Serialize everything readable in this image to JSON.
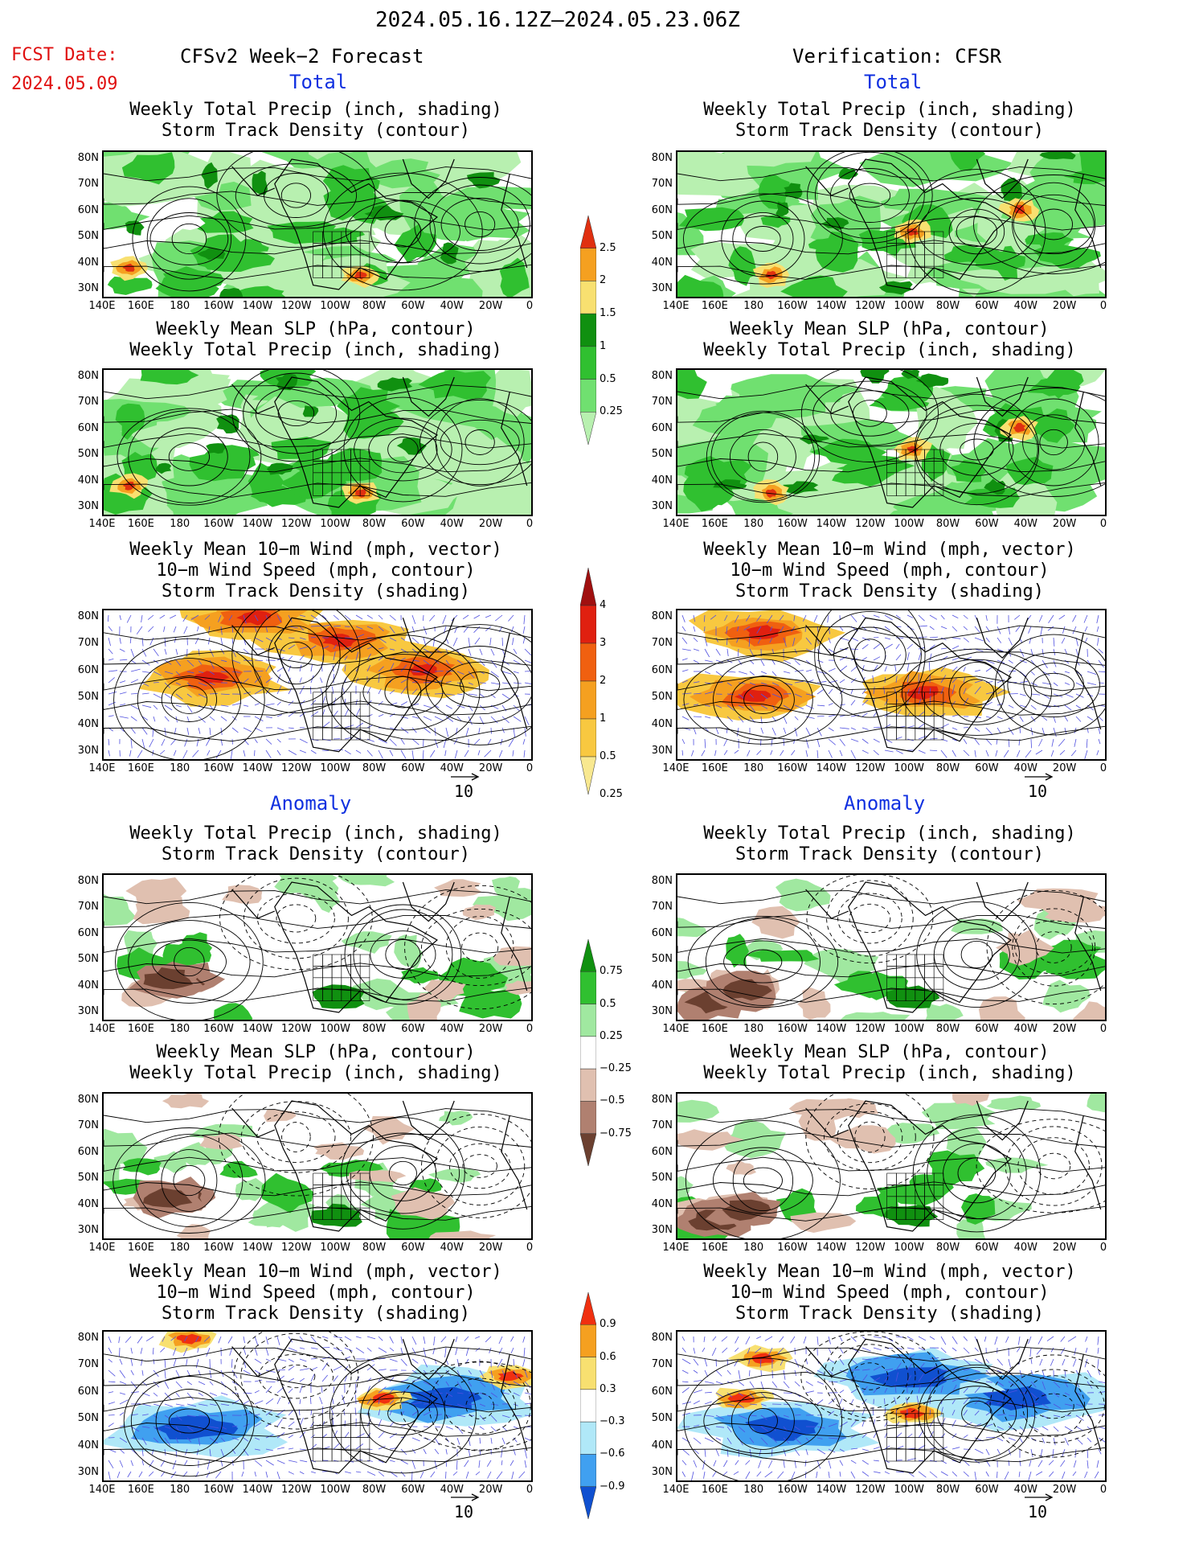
{
  "header": {
    "period": "2024.05.16.12Z—2024.05.23.06Z",
    "fcst_label": "FCST Date:",
    "fcst_date": "2024.05.09",
    "left_title": "CFSv2 Week−2 Forecast",
    "right_title": "Verification: CFSR"
  },
  "sections": {
    "total": "Total",
    "anomaly": "Anomaly"
  },
  "panel_titles": {
    "precip_storm": "Weekly Total Precip (inch, shading)\nStorm Track Density (contour)",
    "slp_precip": "Weekly Mean SLP (hPa, contour)\nWeekly Total Precip (inch, shading)",
    "wind": "Weekly Mean 10−m Wind (mph, vector)\n10−m Wind Speed (mph, contour)\nStorm Track Density (shading)"
  },
  "axes": {
    "lat_ticks": [
      "80N",
      "70N",
      "60N",
      "50N",
      "40N",
      "30N"
    ],
    "lon_ticks": [
      "140E",
      "160E",
      "180",
      "160W",
      "140W",
      "120W",
      "100W",
      "80W",
      "60W",
      "40W",
      "20W",
      "0"
    ]
  },
  "vector_ref": "10",
  "colorbars": {
    "precip_total": [
      "2.5",
      "2",
      "1.5",
      "1",
      "0.5",
      "0.25"
    ],
    "storm_total": [
      "4",
      "3",
      "2",
      "1",
      "0.5",
      "0.25"
    ],
    "precip_anom": [
      "0.75",
      "0.5",
      "0.25",
      "−0.25",
      "−0.5",
      "−0.75"
    ],
    "storm_anom": [
      "0.9",
      "0.6",
      "0.3",
      "−0.3",
      "−0.6",
      "−0.9"
    ]
  },
  "colors": {
    "precip_total": [
      "#e03010",
      "#f5a020",
      "#f8e070",
      "#109010",
      "#30c030",
      "#70e070",
      "#b8f0b0"
    ],
    "storm_total": [
      "#a01010",
      "#e02010",
      "#f06010",
      "#f5a020",
      "#f8c840",
      "#f8e890"
    ],
    "precip_anom": [
      "#109010",
      "#30c030",
      "#a0e8a0",
      "#ffffff",
      "#e0c0b0",
      "#b08070",
      "#6b4030"
    ],
    "storm_anom": [
      "#f03010",
      "#f5a020",
      "#f8e070",
      "#ffffff",
      "#b0e8f8",
      "#40a0f0",
      "#1050d0"
    ]
  }
}
